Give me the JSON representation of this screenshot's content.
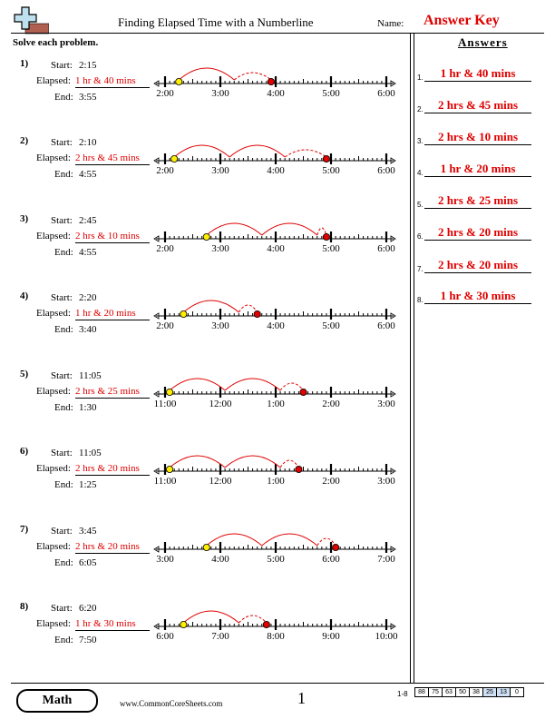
{
  "header": {
    "title": "Finding Elapsed Time with a Numberline",
    "name_label": "Name:",
    "answer_key": "Answer Key",
    "instructions": "Solve each problem."
  },
  "labels": {
    "start": "Start:",
    "elapsed": "Elapsed:",
    "end": "End:"
  },
  "problems": [
    {
      "num": "1)",
      "start": "2:15",
      "elapsed": "1 hr & 40 mins",
      "end": "3:55",
      "ticks": [
        "2:00",
        "3:00",
        "4:00",
        "5:00",
        "6:00"
      ],
      "start_min": 15,
      "end_min": 115
    },
    {
      "num": "2)",
      "start": "2:10",
      "elapsed": "2 hrs & 45 mins",
      "end": "4:55",
      "ticks": [
        "2:00",
        "3:00",
        "4:00",
        "5:00",
        "6:00"
      ],
      "start_min": 10,
      "end_min": 175
    },
    {
      "num": "3)",
      "start": "2:45",
      "elapsed": "2 hrs & 10 mins",
      "end": "4:55",
      "ticks": [
        "2:00",
        "3:00",
        "4:00",
        "5:00",
        "6:00"
      ],
      "start_min": 45,
      "end_min": 175
    },
    {
      "num": "4)",
      "start": "2:20",
      "elapsed": "1 hr & 20 mins",
      "end": "3:40",
      "ticks": [
        "2:00",
        "3:00",
        "4:00",
        "5:00",
        "6:00"
      ],
      "start_min": 20,
      "end_min": 100
    },
    {
      "num": "5)",
      "start": "11:05",
      "elapsed": "2 hrs & 25 mins",
      "end": "1:30",
      "ticks": [
        "11:00",
        "12:00",
        "1:00",
        "2:00",
        "3:00"
      ],
      "start_min": 5,
      "end_min": 150
    },
    {
      "num": "6)",
      "start": "11:05",
      "elapsed": "2 hrs & 20 mins",
      "end": "1:25",
      "ticks": [
        "11:00",
        "12:00",
        "1:00",
        "2:00",
        "3:00"
      ],
      "start_min": 5,
      "end_min": 145
    },
    {
      "num": "7)",
      "start": "3:45",
      "elapsed": "2 hrs & 20 mins",
      "end": "6:05",
      "ticks": [
        "3:00",
        "4:00",
        "5:00",
        "6:00",
        "7:00"
      ],
      "start_min": 45,
      "end_min": 185
    },
    {
      "num": "8)",
      "start": "6:20",
      "elapsed": "1 hr & 30 mins",
      "end": "7:50",
      "ticks": [
        "6:00",
        "7:00",
        "8:00",
        "9:00",
        "10:00"
      ],
      "start_min": 20,
      "end_min": 110
    }
  ],
  "answers": {
    "title": "Answers",
    "items": [
      {
        "num": "1.",
        "text": "1 hr & 40 mins"
      },
      {
        "num": "2.",
        "text": "2 hrs & 45 mins"
      },
      {
        "num": "3.",
        "text": "2 hrs & 10 mins"
      },
      {
        "num": "4.",
        "text": "1 hr & 20 mins"
      },
      {
        "num": "5.",
        "text": "2 hrs & 25 mins"
      },
      {
        "num": "6.",
        "text": "2 hrs & 20 mins"
      },
      {
        "num": "7.",
        "text": "2 hrs & 20 mins"
      },
      {
        "num": "8.",
        "text": "1 hr & 30 mins"
      }
    ]
  },
  "footer": {
    "badge": "Math",
    "website": "www.CommonCoreSheets.com",
    "page": "1",
    "range": "1-8",
    "scores": [
      "88",
      "75",
      "63",
      "50",
      "38",
      "25",
      "13",
      "0"
    ]
  },
  "colors": {
    "answer_red": "#e00000",
    "start_dot": "#ffee00",
    "end_dot": "#e00000",
    "score_highlight": "#cfe0f5"
  },
  "icons": {
    "logo": "plus-logo-icon"
  }
}
